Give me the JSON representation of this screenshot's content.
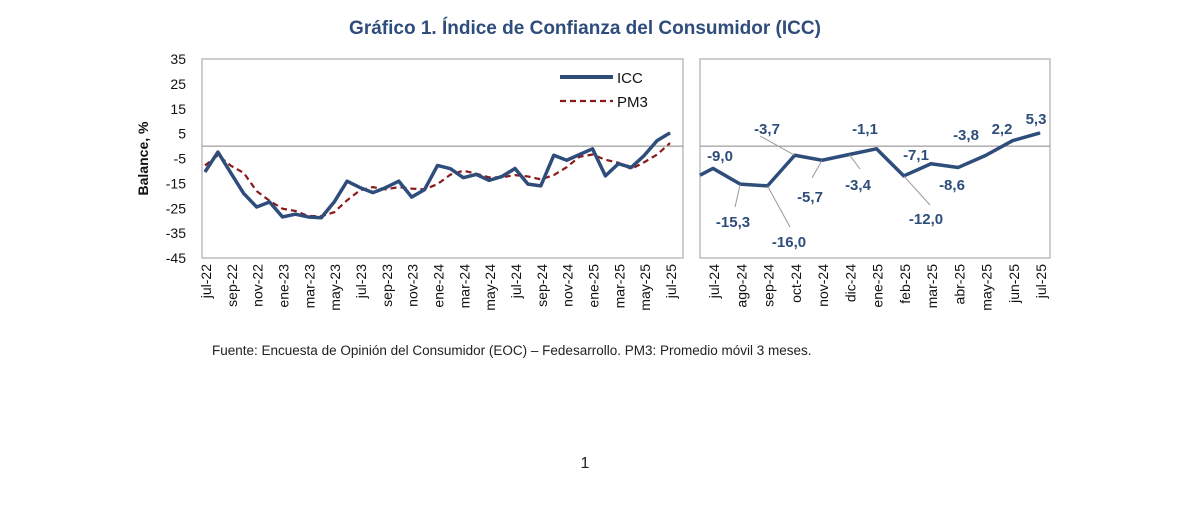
{
  "title": "Gráfico 1. Índice de Confianza del Consumidor (ICC)",
  "source": "Fuente: Encuesta de Opinión del Consumidor (EOC) – Fedesarrollo. PM3: Promedio móvil 3 meses.",
  "page_number": "1",
  "colors": {
    "icc": "#2e4d7b",
    "pm3": "#8b1a1a",
    "title": "#2e4d7b"
  },
  "chart_data": [
    {
      "type": "line",
      "ylabel": "Balance, %",
      "ylim": [
        -45,
        35
      ],
      "yticks": [
        "35",
        "25",
        "15",
        "5",
        "-5",
        "-15",
        "-25",
        "-35",
        "-45"
      ],
      "grid": false,
      "legend": "top-right",
      "x": [
        "jul-22",
        "ago-22",
        "sep-22",
        "oct-22",
        "nov-22",
        "dic-22",
        "ene-23",
        "feb-23",
        "mar-23",
        "abr-23",
        "may-23",
        "jun-23",
        "jul-23",
        "ago-23",
        "sep-23",
        "oct-23",
        "nov-23",
        "dic-23",
        "ene-24",
        "feb-24",
        "mar-24",
        "abr-24",
        "may-24",
        "jun-24",
        "jul-24",
        "ago-24",
        "sep-24",
        "oct-24",
        "nov-24",
        "dic-24",
        "ene-25",
        "feb-25",
        "mar-25",
        "abr-25",
        "may-25",
        "jun-25",
        "jul-25"
      ],
      "xtick_labels": [
        "jul-22",
        "sep-22",
        "nov-22",
        "ene-23",
        "mar-23",
        "may-23",
        "jul-23",
        "sep-23",
        "nov-23",
        "ene-24",
        "mar-24",
        "may-24",
        "jul-24",
        "sep-24",
        "nov-24",
        "ene-25",
        "mar-25",
        "may-25",
        "jul-25"
      ],
      "series": [
        {
          "name": "ICC",
          "values": [
            -10.4,
            -2.4,
            -10.8,
            -19.1,
            -24.5,
            -22.5,
            -28.5,
            -27.4,
            -28.5,
            -28.8,
            -22.5,
            -14.1,
            -16.7,
            -18.7,
            -16.7,
            -14.1,
            -20.5,
            -17.5,
            -7.8,
            -9.1,
            -12.7,
            -11.4,
            -13.8,
            -12.2,
            -9.0,
            -15.3,
            -16.0,
            -3.7,
            -5.7,
            -3.4,
            -1.1,
            -12.0,
            -7.1,
            -8.6,
            -3.8,
            2.2,
            5.3
          ]
        },
        {
          "name": "PM3",
          "values": [
            -7.8,
            -3.7,
            -7.9,
            -10.8,
            -18.1,
            -22.0,
            -25.2,
            -26.1,
            -28.1,
            -28.2,
            -26.6,
            -21.8,
            -17.8,
            -16.5,
            -17.4,
            -16.5,
            -17.1,
            -17.4,
            -15.3,
            -11.5,
            -9.9,
            -11.1,
            -12.6,
            -12.5,
            -11.7,
            -12.2,
            -13.4,
            -11.7,
            -8.5,
            -4.3,
            -3.4,
            -5.5,
            -6.7,
            -9.2,
            -6.5,
            -3.4,
            1.2
          ]
        }
      ]
    },
    {
      "type": "line",
      "ylim": [
        -45,
        35
      ],
      "grid": false,
      "x": [
        "jul-24",
        "ago-24",
        "sep-24",
        "oct-24",
        "nov-24",
        "dic-24",
        "ene-25",
        "feb-25",
        "mar-25",
        "abr-25",
        "may-25",
        "jun-25",
        "jul-25"
      ],
      "series": [
        {
          "name": "ICC",
          "values": [
            -9.0,
            -15.3,
            -16.0,
            -3.7,
            -5.7,
            -3.4,
            -1.1,
            -12.0,
            -7.1,
            -8.6,
            -3.8,
            2.2,
            5.3
          ],
          "labels": [
            "-9,0",
            "-15,3",
            "-16,0",
            "-3,7",
            "-5,7",
            "-3,4",
            "-1,1",
            "-12,0",
            "-7,1",
            "-8,6",
            "-3,8",
            "2,2",
            "5,3"
          ]
        }
      ]
    }
  ]
}
